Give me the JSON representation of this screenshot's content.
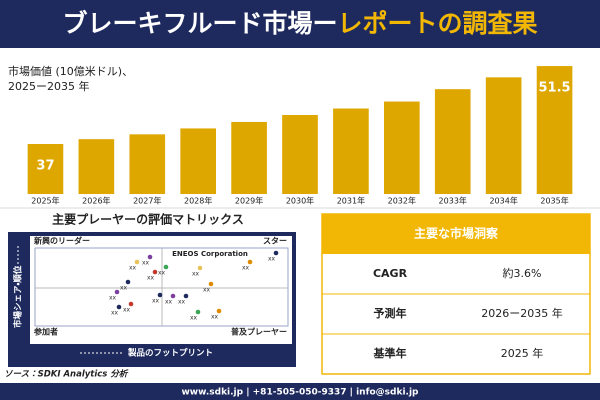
{
  "header": {
    "title_main": "ブレーキフルード市場ー",
    "title_accent": "レポートの調査果"
  },
  "chart_data": {
    "type": "bar",
    "subtitle": [
      "市場価値 (10億米ドル)、",
      "2025ー2035 年"
    ],
    "categories": [
      "2025年",
      "2026年",
      "2027年",
      "2028年",
      "2029年",
      "2030年",
      "2031年",
      "2032年",
      "2033年",
      "2034年",
      "2035年"
    ],
    "values": [
      37,
      37.9,
      38.8,
      39.9,
      41.1,
      42.4,
      43.6,
      44.9,
      47.2,
      49.4,
      51.5
    ],
    "value_labels": [
      "37",
      null,
      null,
      null,
      null,
      null,
      null,
      null,
      null,
      null,
      "51.5"
    ],
    "color": "#dea700",
    "ylim": [
      27.7,
      53
    ]
  },
  "matrix": {
    "title": "主要プレーヤーの評価マトリックス",
    "top_left": "新興のリーダー",
    "top_right": "スター",
    "bottom_left": "参加者",
    "bottom_right": "普及プレーヤー",
    "y_axis": "市場シェア・順位",
    "x_axis": "製品のフットプリント",
    "highlight": "ENEOS Corporation",
    "point_label": "xx"
  },
  "insights": {
    "title": "主要な市場洞察",
    "rows": [
      [
        "CAGR",
        "約3.6%"
      ],
      [
        "予測年",
        "2026ー2035 年"
      ],
      [
        "基準年",
        "2025 年"
      ]
    ]
  },
  "source": "ソース：SDKI Analytics 分析",
  "footer": "www.sdki.jp | +81-505-050-9337 | info@sdki.jp"
}
